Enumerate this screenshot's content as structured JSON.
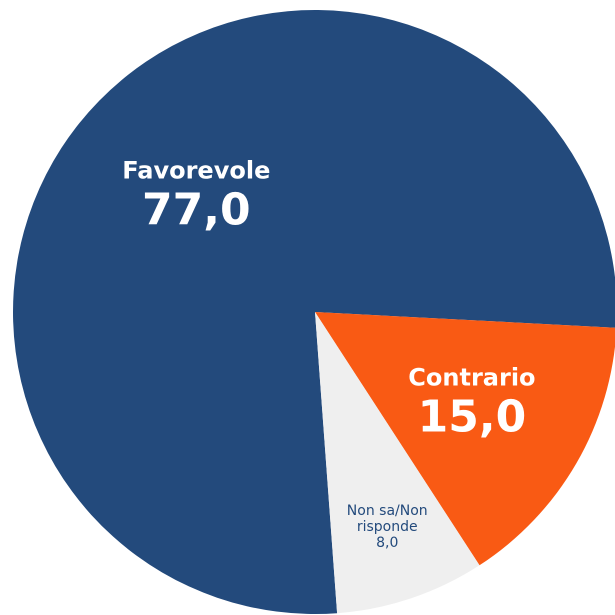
{
  "chart_data": {
    "type": "pie",
    "categories": [
      "Favorevole",
      "Contrario",
      "Non sa/Non risponde"
    ],
    "values": [
      77,
      15,
      8
    ],
    "value_labels": [
      "77,0",
      "15,0",
      "8,0"
    ],
    "colors": [
      "#234a7c",
      "#f95a14",
      "#efefef"
    ]
  }
}
